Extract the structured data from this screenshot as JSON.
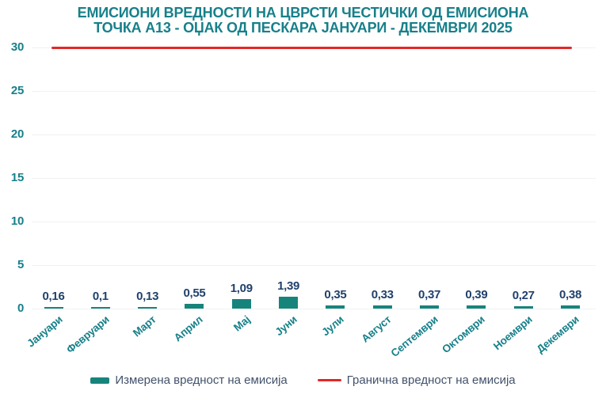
{
  "title": {
    "line1": "ЕМИСИОНИ ВРЕДНОСТИ НА ЦВРСТИ ЧЕСТИЧКИ ОД ЕМИСИОНА",
    "line2": "ТОЧКА А13 - ОЏАК ОД ПЕСКАРА ЈАНУАРИ - ДЕКЕМВРИ 2025"
  },
  "chart_data": {
    "type": "bar",
    "title": "ЕМИСИОНИ ВРЕДНОСТИ НА ЦВРСТИ ЧЕСТИЧКИ ОД ЕМИСИОНА ТОЧКА А13 - ОЏАК ОД ПЕСКАРА ЈАНУАРИ - ДЕКЕМВРИ 2025",
    "xlabel": "",
    "ylabel": "",
    "ylim": [
      0,
      30
    ],
    "yticks": [
      0,
      5,
      10,
      15,
      20,
      25,
      30
    ],
    "grid": true,
    "legend_position": "bottom",
    "categories": [
      "Јануари",
      "Февруари",
      "Март",
      "Април",
      "Мај",
      "Јуни",
      "Јули",
      "Август",
      "Септември",
      "Октомври",
      "Ноември",
      "Декември"
    ],
    "series": [
      {
        "name": "Измерена вредност на емисија",
        "type": "bar",
        "color": "#17847C",
        "values": [
          0.16,
          0.1,
          0.13,
          0.55,
          1.09,
          1.39,
          0.35,
          0.33,
          0.37,
          0.39,
          0.27,
          0.38
        ],
        "labels": [
          "0,16",
          "0,1",
          "0,13",
          "0,55",
          "1,09",
          "1,39",
          "0,35",
          "0,33",
          "0,37",
          "0,39",
          "0,27",
          "0,38"
        ]
      },
      {
        "name": "Гранична вредност на емисија",
        "type": "line",
        "color": "#E32726",
        "value": 30
      }
    ]
  },
  "legend": {
    "measured": "Измерена вредност на емисија",
    "limit": "Гранична вредност на емисија"
  },
  "colors": {
    "teal_text": "#17808A",
    "bar_teal": "#17847C",
    "value_navy": "#20416B",
    "limit_red": "#E32726",
    "gridline": "#EFF1F3",
    "legend_text": "#42526B",
    "background": "#FFFFFF"
  }
}
